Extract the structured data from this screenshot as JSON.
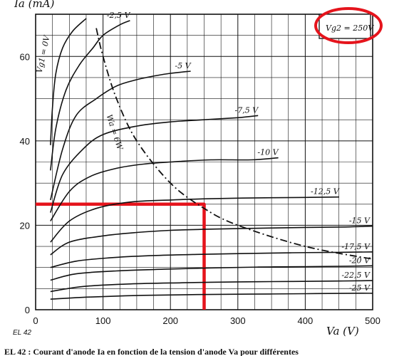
{
  "chart_data": {
    "type": "line",
    "title": "",
    "xlabel": "Va (V)",
    "ylabel": "Ia (mA)",
    "xlim": [
      0,
      500
    ],
    "ylim": [
      0,
      70
    ],
    "x_ticks": [
      "0",
      "100",
      "200",
      "300",
      "400",
      "500"
    ],
    "y_ticks": [
      "0",
      "20",
      "40",
      "60"
    ],
    "grid": true,
    "parameter_box": "Vg2 = 250V",
    "tube_label": "EL 42",
    "caption_fragment": "EL 42 : Courant d'anode Ia en fonction de la tension d'anode Va pour différentes",
    "series": [
      {
        "name": "Vg1 = 0V",
        "x": [
          22,
          25,
          30,
          40,
          55,
          75
        ],
        "y": [
          39,
          48,
          56,
          62,
          66,
          69
        ]
      },
      {
        "name": "-2,5 V",
        "x": [
          22,
          30,
          45,
          65,
          85,
          100,
          125,
          140
        ],
        "y": [
          33,
          43,
          52,
          58,
          62,
          65,
          67.5,
          68.5
        ]
      },
      {
        "name": "-5 V",
        "x": [
          22,
          40,
          60,
          90,
          120,
          150,
          180,
          200,
          230
        ],
        "y": [
          26,
          38,
          46,
          50,
          53,
          54.5,
          55.5,
          56,
          56.5
        ]
      },
      {
        "name": "-7,5 V",
        "x": [
          22,
          40,
          70,
          100,
          150,
          200,
          250,
          300,
          330
        ],
        "y": [
          23,
          32,
          38,
          41.5,
          43.5,
          44.5,
          45,
          45.5,
          46
        ]
      },
      {
        "name": "-10 V",
        "x": [
          22,
          50,
          80,
          120,
          160,
          200,
          260,
          320,
          360
        ],
        "y": [
          21,
          28,
          31.5,
          33.5,
          34.5,
          35,
          35.5,
          35.5,
          36
        ]
      },
      {
        "name": "-12,5 V",
        "x": [
          22,
          50,
          90,
          140,
          200,
          260,
          330,
          400,
          450
        ],
        "y": [
          16,
          21,
          24,
          25.5,
          26,
          26.3,
          26.5,
          26.6,
          26.7
        ]
      },
      {
        "name": "-15 V",
        "x": [
          22,
          50,
          100,
          150,
          200,
          260,
          330,
          400,
          460,
          500
        ],
        "y": [
          13,
          16,
          17.5,
          18.3,
          18.8,
          19.1,
          19.3,
          19.5,
          19.6,
          19.8
        ]
      },
      {
        "name": "-17,5 V",
        "x": [
          22,
          60,
          110,
          170,
          240,
          310,
          380,
          450,
          500
        ],
        "y": [
          10,
          11.5,
          12.3,
          12.8,
          13.1,
          13.3,
          13.5,
          13.6,
          13.7
        ]
      },
      {
        "name": "-20 V",
        "x": [
          22,
          60,
          120,
          190,
          260,
          330,
          400,
          460,
          500
        ],
        "y": [
          7,
          8.5,
          9.2,
          9.6,
          9.9,
          10.1,
          10.2,
          10.3,
          10.4
        ]
      },
      {
        "name": "-22,5 V",
        "x": [
          22,
          70,
          140,
          220,
          300,
          380,
          450,
          500
        ],
        "y": [
          4.3,
          5.5,
          6.1,
          6.4,
          6.6,
          6.7,
          6.8,
          6.9
        ]
      },
      {
        "name": "-25 V",
        "x": [
          22,
          80,
          160,
          240,
          320,
          400,
          470,
          500
        ],
        "y": [
          2.5,
          3,
          3.4,
          3.6,
          3.7,
          3.8,
          3.9,
          3.9
        ]
      }
    ],
    "power_curve": {
      "name": "Wa = 6W",
      "x": [
        90,
        100,
        120,
        150,
        200,
        250,
        300,
        400,
        500
      ],
      "y": [
        66.7,
        60,
        50,
        40,
        30,
        24,
        20,
        15,
        12
      ]
    },
    "annotation_line": {
      "x": [
        0,
        250,
        250
      ],
      "y": [
        25,
        25,
        0
      ]
    }
  },
  "colors": {
    "ink": "#111111",
    "annotation": "#e5141c",
    "background": "#ffffff"
  }
}
